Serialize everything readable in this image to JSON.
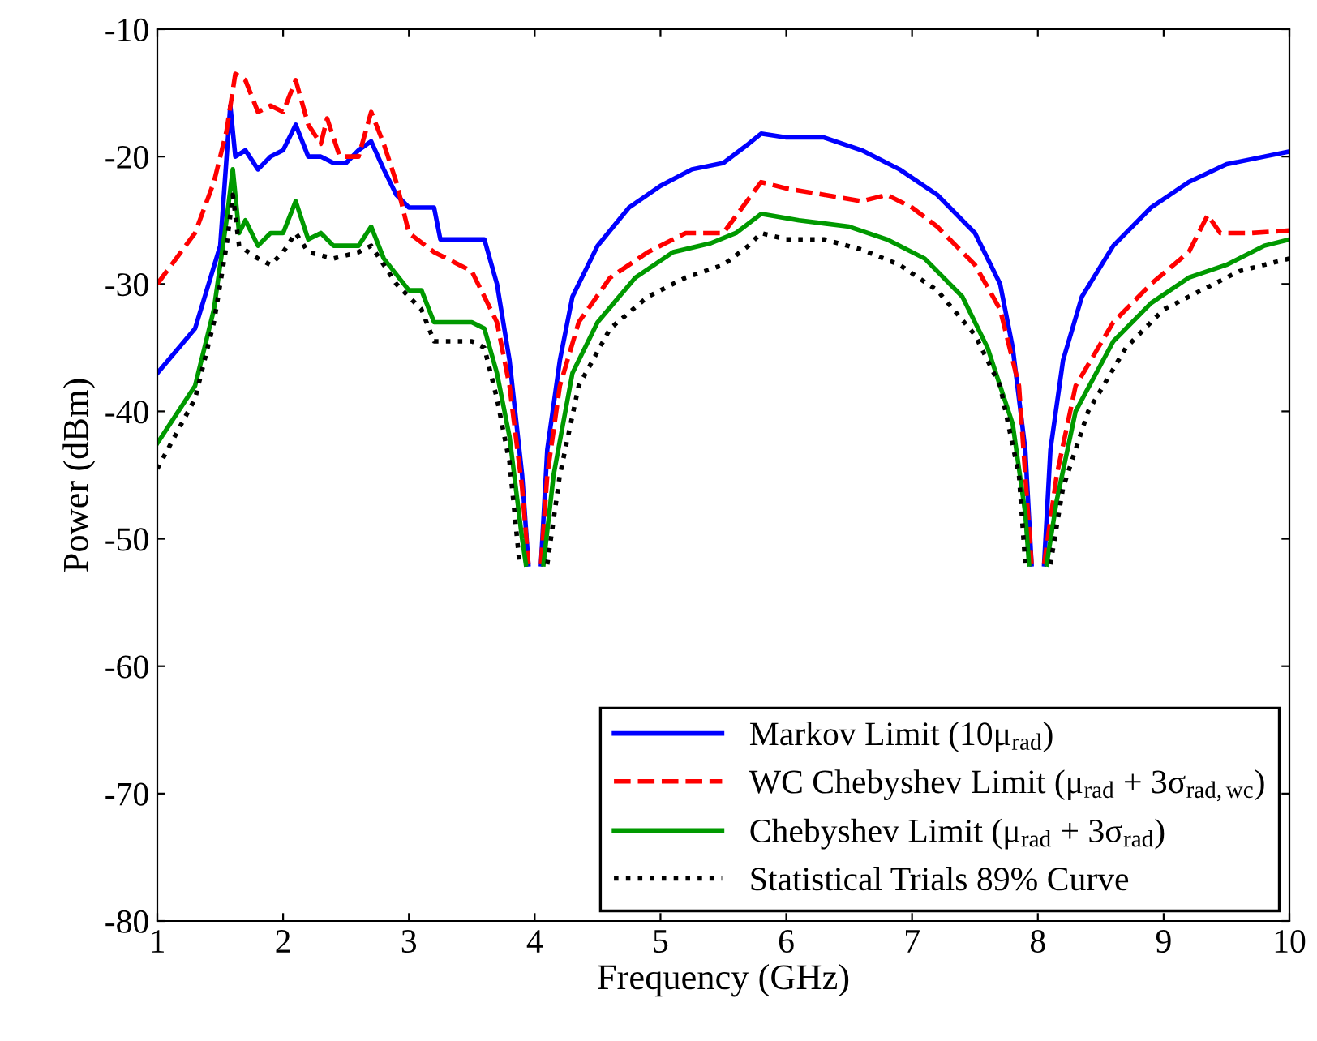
{
  "chart_data": {
    "type": "line",
    "xlabel": "Frequency (GHz)",
    "ylabel": "Power (dBm)",
    "xlim": [
      1,
      10
    ],
    "xticks": [
      1,
      2,
      3,
      4,
      5,
      6,
      7,
      8,
      9,
      10
    ],
    "ylim": [
      -80,
      -10
    ],
    "yticks": [
      -80,
      -70,
      -60,
      -50,
      -40,
      -30,
      -20,
      -10
    ],
    "grid": false,
    "legend": "bottom right",
    "series": [
      {
        "name": "Markov Limit (10μ$_{rad}$)",
        "color": "#0000ff",
        "line_style": "solid",
        "x": [
          1,
          1.3,
          1.5,
          1.58,
          1.62,
          1.7,
          1.8,
          1.9,
          2.0,
          2.1,
          2.2,
          2.3,
          2.4,
          2.5,
          2.6,
          2.7,
          2.8,
          2.9,
          3.0,
          3.2,
          3.25,
          3.5,
          3.6,
          3.7,
          3.8,
          3.9,
          3.95,
          4.0,
          4.05,
          4.1,
          4.2,
          4.3,
          4.5,
          4.75,
          5,
          5.25,
          5.5,
          5.7,
          5.8,
          6.0,
          6.3,
          6.6,
          6.9,
          7.2,
          7.5,
          7.7,
          7.8,
          7.9,
          7.95,
          8.0,
          8.05,
          8.1,
          8.2,
          8.35,
          8.6,
          8.9,
          9.2,
          9.5,
          9.8,
          10
        ],
        "values": [
          -37,
          -33.5,
          -27,
          -16,
          -20,
          -19.5,
          -21,
          -20,
          -19.5,
          -17.5,
          -20,
          -20,
          -20.5,
          -20.5,
          -19.5,
          -18.8,
          -21,
          -23,
          -24,
          -24,
          -26.5,
          -26.5,
          -26.5,
          -30,
          -36,
          -45,
          -52,
          null,
          -52,
          -43,
          -36,
          -31,
          -27,
          -24,
          -22.3,
          -21,
          -20.5,
          -19,
          -18.2,
          -18.5,
          -18.5,
          -19.5,
          -21,
          -23,
          -26,
          -30,
          -35,
          -43,
          -52,
          null,
          -52,
          -43,
          -36,
          -31,
          -27,
          -24,
          -22,
          -20.6,
          -20,
          -19.6
        ]
      },
      {
        "name": "WC Chebyshev Limit (μ$_{rad}$ + 3σ$_{rad,wc}$)",
        "color": "#ff0000",
        "line_style": "dashed",
        "x": [
          1,
          1.3,
          1.45,
          1.55,
          1.62,
          1.7,
          1.8,
          1.9,
          2.0,
          2.1,
          2.2,
          2.3,
          2.35,
          2.45,
          2.6,
          2.7,
          2.8,
          2.9,
          3.0,
          3.2,
          3.4,
          3.5,
          3.7,
          3.8,
          3.9,
          3.95,
          4.0,
          4.05,
          4.1,
          4.2,
          4.35,
          4.6,
          4.9,
          5.2,
          5.5,
          5.65,
          5.8,
          6.0,
          6.3,
          6.6,
          6.8,
          7.0,
          7.2,
          7.5,
          7.7,
          7.85,
          7.95,
          8.0,
          8.05,
          8.15,
          8.3,
          8.6,
          8.9,
          9.2,
          9.35,
          9.45,
          9.7,
          10
        ],
        "values": [
          -30,
          -26,
          -22,
          -18,
          -13.5,
          -14,
          -16.5,
          -16,
          -16.5,
          -14,
          -17.5,
          -19,
          -17,
          -20,
          -20,
          -16.5,
          -19,
          -22,
          -26,
          -27.5,
          -28.5,
          -29,
          -33,
          -38,
          -46,
          -52,
          null,
          -52,
          -45,
          -38,
          -33,
          -29.5,
          -27.5,
          -26,
          -26,
          -24,
          -22,
          -22.5,
          -23,
          -23.5,
          -23,
          -24,
          -25.5,
          -28.5,
          -32,
          -38,
          -52,
          null,
          -52,
          -45,
          -38,
          -33,
          -30,
          -27.5,
          -24.6,
          -26,
          -26,
          -25.8
        ]
      },
      {
        "name": "Chebyshev Limit (μ$_{rad}$ + 3σ$_{rad}$)",
        "color": "#009900",
        "line_style": "solid",
        "x": [
          1,
          1.3,
          1.45,
          1.55,
          1.6,
          1.65,
          1.7,
          1.8,
          1.9,
          2.0,
          2.1,
          2.2,
          2.3,
          2.4,
          2.6,
          2.7,
          2.8,
          3.0,
          3.1,
          3.2,
          3.5,
          3.6,
          3.7,
          3.8,
          3.9,
          3.93,
          4.0,
          4.07,
          4.15,
          4.3,
          4.5,
          4.8,
          5.1,
          5.4,
          5.6,
          5.8,
          6.1,
          6.5,
          6.8,
          7.1,
          7.4,
          7.6,
          7.8,
          7.9,
          7.93,
          8.0,
          8.07,
          8.15,
          8.3,
          8.6,
          8.9,
          9.2,
          9.5,
          9.8,
          10
        ],
        "values": [
          -42.5,
          -38,
          -32,
          -25,
          -21,
          -26,
          -25,
          -27,
          -26,
          -26,
          -23.5,
          -26.5,
          -26,
          -27,
          -27,
          -25.5,
          -28,
          -30.5,
          -30.5,
          -33,
          -33,
          -33.5,
          -37,
          -42,
          -50,
          -52,
          null,
          -52,
          -45,
          -37,
          -33,
          -29.5,
          -27.5,
          -26.8,
          -26,
          -24.5,
          -25,
          -25.5,
          -26.5,
          -28,
          -31,
          -35,
          -41,
          -48,
          -52,
          null,
          -52,
          -47,
          -40,
          -34.5,
          -31.5,
          -29.5,
          -28.5,
          -27,
          -26.5
        ]
      },
      {
        "name": "Statistical Trials 89% Curve",
        "color": "#000000",
        "line_style": "dotted",
        "x": [
          1,
          1.3,
          1.45,
          1.55,
          1.6,
          1.65,
          1.8,
          1.9,
          2.0,
          2.1,
          2.2,
          2.4,
          2.6,
          2.7,
          2.9,
          3.1,
          3.2,
          3.5,
          3.6,
          3.7,
          3.8,
          3.88,
          4.0,
          4.1,
          4.2,
          4.35,
          4.6,
          4.9,
          5.2,
          5.5,
          5.7,
          5.8,
          6.0,
          6.3,
          6.6,
          6.9,
          7.2,
          7.5,
          7.7,
          7.85,
          7.9,
          8.0,
          8.1,
          8.2,
          8.4,
          8.7,
          9.0,
          9.3,
          9.6,
          10
        ],
        "values": [
          -44.5,
          -39,
          -33,
          -27,
          -23,
          -27,
          -28,
          -28.5,
          -27.5,
          -26,
          -27.5,
          -28,
          -27.5,
          -27,
          -30,
          -32,
          -34.5,
          -34.5,
          -35,
          -39,
          -44,
          -52,
          null,
          -52,
          -45,
          -38,
          -33.5,
          -31,
          -29.5,
          -28.5,
          -27,
          -26,
          -26.5,
          -26.5,
          -27.3,
          -28.5,
          -30.5,
          -34,
          -38,
          -45,
          -52,
          null,
          -52,
          -46,
          -40,
          -35,
          -32,
          -30.5,
          -29,
          -28
        ]
      }
    ]
  }
}
